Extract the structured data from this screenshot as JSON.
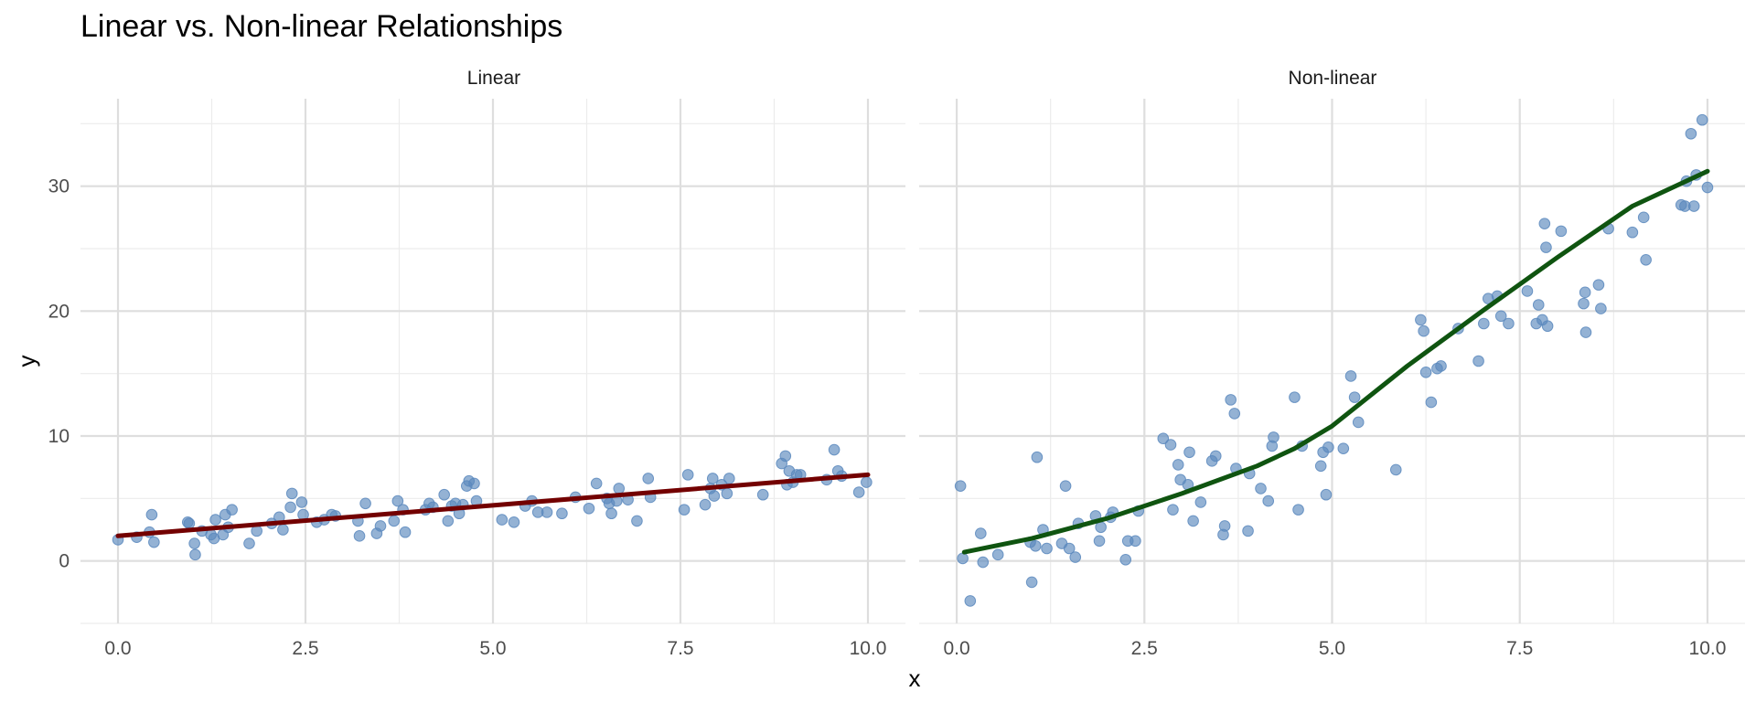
{
  "chart_data": {
    "type": "scatter",
    "title": "Linear vs. Non-linear Relationships",
    "xlabel": "x",
    "ylabel": "y",
    "xlim": [
      -0.5,
      10.5
    ],
    "ylim": [
      -5,
      37
    ],
    "x_ticks": [
      0.0,
      2.5,
      5.0,
      7.5,
      10.0
    ],
    "x_tick_labels": [
      "0.0",
      "2.5",
      "5.0",
      "7.5",
      "10.0"
    ],
    "y_ticks": [
      0,
      10,
      20,
      30
    ],
    "y_tick_labels": [
      "0",
      "10",
      "20",
      "30"
    ],
    "grid": true,
    "point_color": "#5b88bd",
    "facets": [
      {
        "label": "Linear",
        "line_color": "#730000",
        "fit_line": [
          [
            0.0,
            2.0
          ],
          [
            10.0,
            6.9
          ]
        ],
        "points": [
          [
            0.0,
            1.7
          ],
          [
            0.25,
            1.9
          ],
          [
            0.42,
            2.3
          ],
          [
            0.45,
            3.7
          ],
          [
            0.48,
            1.5
          ],
          [
            0.93,
            3.1
          ],
          [
            0.95,
            3.0
          ],
          [
            1.02,
            1.4
          ],
          [
            1.03,
            0.5
          ],
          [
            1.12,
            2.4
          ],
          [
            1.24,
            2.1
          ],
          [
            1.28,
            1.8
          ],
          [
            1.3,
            3.3
          ],
          [
            1.4,
            2.1
          ],
          [
            1.43,
            3.7
          ],
          [
            1.47,
            2.7
          ],
          [
            1.52,
            4.1
          ],
          [
            1.75,
            1.4
          ],
          [
            1.85,
            2.4
          ],
          [
            2.05,
            3.0
          ],
          [
            2.15,
            3.5
          ],
          [
            2.2,
            2.5
          ],
          [
            2.3,
            4.3
          ],
          [
            2.32,
            5.4
          ],
          [
            2.45,
            4.7
          ],
          [
            2.47,
            3.7
          ],
          [
            2.65,
            3.1
          ],
          [
            2.75,
            3.3
          ],
          [
            2.85,
            3.7
          ],
          [
            2.9,
            3.6
          ],
          [
            3.2,
            3.2
          ],
          [
            3.22,
            2.0
          ],
          [
            3.3,
            4.6
          ],
          [
            3.45,
            2.2
          ],
          [
            3.5,
            2.8
          ],
          [
            3.68,
            3.2
          ],
          [
            3.73,
            4.8
          ],
          [
            3.8,
            4.1
          ],
          [
            3.83,
            2.3
          ],
          [
            4.1,
            4.1
          ],
          [
            4.15,
            4.6
          ],
          [
            4.2,
            4.3
          ],
          [
            4.35,
            5.3
          ],
          [
            4.4,
            3.2
          ],
          [
            4.45,
            4.4
          ],
          [
            4.5,
            4.6
          ],
          [
            4.55,
            3.8
          ],
          [
            4.6,
            4.5
          ],
          [
            4.65,
            6.0
          ],
          [
            4.68,
            6.4
          ],
          [
            4.75,
            6.2
          ],
          [
            4.78,
            4.8
          ],
          [
            5.12,
            3.3
          ],
          [
            5.28,
            3.1
          ],
          [
            5.43,
            4.4
          ],
          [
            5.52,
            4.8
          ],
          [
            5.6,
            3.9
          ],
          [
            5.72,
            3.9
          ],
          [
            5.92,
            3.8
          ],
          [
            6.1,
            5.1
          ],
          [
            6.28,
            4.2
          ],
          [
            6.38,
            6.2
          ],
          [
            6.52,
            5.0
          ],
          [
            6.55,
            4.6
          ],
          [
            6.58,
            3.8
          ],
          [
            6.65,
            4.8
          ],
          [
            6.68,
            5.8
          ],
          [
            6.8,
            4.9
          ],
          [
            6.92,
            3.2
          ],
          [
            7.07,
            6.6
          ],
          [
            7.1,
            5.1
          ],
          [
            7.55,
            4.1
          ],
          [
            7.6,
            6.9
          ],
          [
            7.83,
            4.5
          ],
          [
            7.9,
            5.8
          ],
          [
            7.93,
            6.6
          ],
          [
            7.95,
            5.2
          ],
          [
            8.05,
            6.1
          ],
          [
            8.12,
            5.4
          ],
          [
            8.15,
            6.6
          ],
          [
            8.6,
            5.3
          ],
          [
            8.85,
            7.8
          ],
          [
            8.9,
            8.4
          ],
          [
            8.92,
            6.1
          ],
          [
            8.95,
            7.2
          ],
          [
            9.0,
            6.3
          ],
          [
            9.05,
            6.9
          ],
          [
            9.1,
            6.9
          ],
          [
            9.45,
            6.5
          ],
          [
            9.55,
            8.9
          ],
          [
            9.6,
            7.2
          ],
          [
            9.65,
            6.8
          ],
          [
            9.88,
            5.5
          ],
          [
            9.98,
            6.3
          ]
        ]
      },
      {
        "label": "Non-linear",
        "line_color": "#0f5410",
        "fit_line": [
          [
            0.1,
            0.7
          ],
          [
            1.0,
            1.8
          ],
          [
            2.0,
            3.4
          ],
          [
            3.0,
            5.4
          ],
          [
            4.0,
            7.6
          ],
          [
            4.5,
            9.0
          ],
          [
            5.0,
            10.8
          ],
          [
            6.0,
            15.6
          ],
          [
            7.0,
            20.0
          ],
          [
            8.0,
            24.3
          ],
          [
            9.0,
            28.4
          ],
          [
            10.0,
            31.2
          ]
        ],
        "points": [
          [
            0.05,
            6.0
          ],
          [
            0.08,
            0.2
          ],
          [
            0.18,
            -3.2
          ],
          [
            0.32,
            2.2
          ],
          [
            0.35,
            -0.1
          ],
          [
            0.55,
            0.5
          ],
          [
            0.98,
            1.5
          ],
          [
            1.0,
            -1.7
          ],
          [
            1.05,
            1.2
          ],
          [
            1.07,
            8.3
          ],
          [
            1.15,
            2.5
          ],
          [
            1.2,
            1.0
          ],
          [
            1.4,
            1.4
          ],
          [
            1.45,
            6.0
          ],
          [
            1.5,
            1.0
          ],
          [
            1.58,
            0.3
          ],
          [
            1.62,
            3.0
          ],
          [
            1.85,
            3.6
          ],
          [
            1.9,
            1.6
          ],
          [
            1.92,
            2.7
          ],
          [
            2.05,
            3.5
          ],
          [
            2.08,
            3.9
          ],
          [
            2.25,
            0.1
          ],
          [
            2.28,
            1.6
          ],
          [
            2.38,
            1.6
          ],
          [
            2.42,
            4.0
          ],
          [
            2.75,
            9.8
          ],
          [
            2.85,
            9.3
          ],
          [
            2.88,
            4.1
          ],
          [
            2.95,
            7.7
          ],
          [
            2.98,
            6.5
          ],
          [
            3.08,
            6.1
          ],
          [
            3.1,
            8.7
          ],
          [
            3.15,
            3.2
          ],
          [
            3.25,
            4.7
          ],
          [
            3.4,
            8.0
          ],
          [
            3.45,
            8.4
          ],
          [
            3.55,
            2.1
          ],
          [
            3.57,
            2.8
          ],
          [
            3.65,
            12.9
          ],
          [
            3.7,
            11.8
          ],
          [
            3.72,
            7.4
          ],
          [
            3.88,
            2.4
          ],
          [
            3.9,
            7.0
          ],
          [
            4.05,
            5.8
          ],
          [
            4.15,
            4.8
          ],
          [
            4.2,
            9.2
          ],
          [
            4.22,
            9.9
          ],
          [
            4.5,
            13.1
          ],
          [
            4.55,
            4.1
          ],
          [
            4.6,
            9.2
          ],
          [
            4.85,
            7.6
          ],
          [
            4.88,
            8.7
          ],
          [
            4.92,
            5.3
          ],
          [
            4.95,
            9.1
          ],
          [
            5.15,
            9.0
          ],
          [
            5.25,
            14.8
          ],
          [
            5.3,
            13.1
          ],
          [
            5.35,
            11.1
          ],
          [
            5.85,
            7.3
          ],
          [
            6.18,
            19.3
          ],
          [
            6.22,
            18.4
          ],
          [
            6.25,
            15.1
          ],
          [
            6.32,
            12.7
          ],
          [
            6.4,
            15.4
          ],
          [
            6.45,
            15.6
          ],
          [
            6.68,
            18.6
          ],
          [
            6.95,
            16.0
          ],
          [
            7.02,
            19.0
          ],
          [
            7.08,
            21.0
          ],
          [
            7.2,
            21.2
          ],
          [
            7.25,
            19.6
          ],
          [
            7.35,
            19.0
          ],
          [
            7.6,
            21.6
          ],
          [
            7.72,
            19.0
          ],
          [
            7.75,
            20.5
          ],
          [
            7.8,
            19.3
          ],
          [
            7.83,
            27.0
          ],
          [
            7.85,
            25.1
          ],
          [
            7.87,
            18.8
          ],
          [
            8.05,
            26.4
          ],
          [
            8.35,
            20.6
          ],
          [
            8.37,
            21.5
          ],
          [
            8.38,
            18.3
          ],
          [
            8.55,
            22.1
          ],
          [
            8.58,
            20.2
          ],
          [
            8.68,
            26.6
          ],
          [
            9.0,
            26.3
          ],
          [
            9.15,
            27.5
          ],
          [
            9.18,
            24.1
          ],
          [
            9.65,
            28.5
          ],
          [
            9.7,
            28.4
          ],
          [
            9.72,
            30.4
          ],
          [
            9.78,
            34.2
          ],
          [
            9.82,
            28.4
          ],
          [
            9.85,
            30.9
          ],
          [
            9.93,
            35.3
          ],
          [
            10.0,
            29.9
          ]
        ]
      }
    ]
  }
}
